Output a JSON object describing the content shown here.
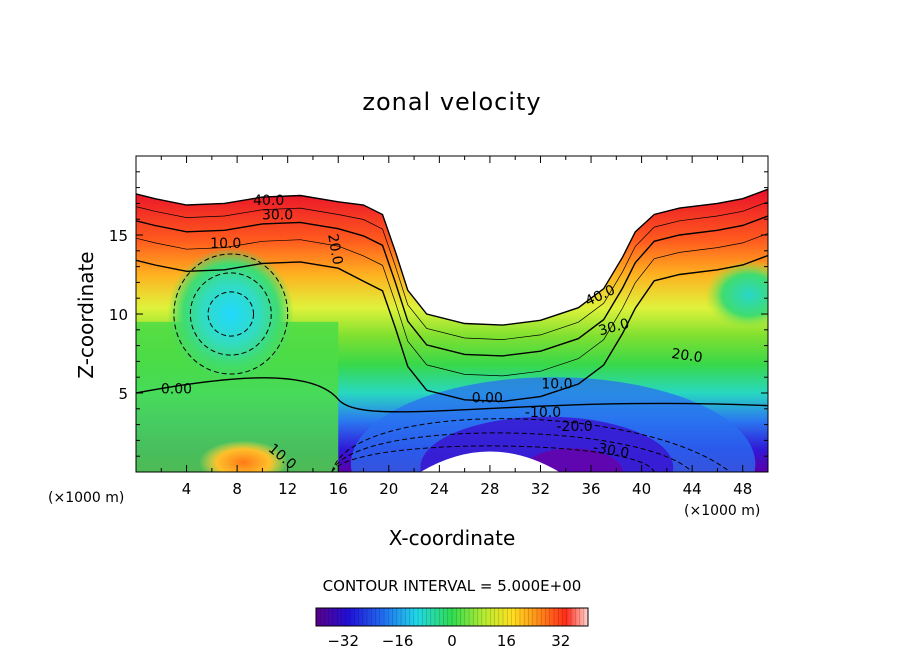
{
  "chart_data": {
    "type": "contour",
    "title": "zonal velocity",
    "xlabel": "X-coordinate",
    "ylabel": "Z-coordinate",
    "x_unit_label": "(×1000 m)",
    "xlim": [
      0,
      50
    ],
    "ylim": [
      0,
      20
    ],
    "x_ticks": [
      4,
      8,
      12,
      16,
      20,
      24,
      28,
      32,
      36,
      40,
      44,
      48
    ],
    "y_ticks": [
      5,
      10,
      15
    ],
    "contour_interval_text": "CONTOUR INTERVAL = 5.000E+00",
    "colorbar": {
      "min": -40,
      "max": 40,
      "ticks": [
        -32,
        -16,
        0,
        16,
        32
      ],
      "tick_labels": [
        "−32",
        "−16",
        "0",
        "16",
        "32"
      ]
    },
    "contour_labels": [
      {
        "text": "40.0",
        "x": 10.5,
        "z": 17.2
      },
      {
        "text": "30.0",
        "x": 11.2,
        "z": 16.3
      },
      {
        "text": "10.0",
        "x": 7.1,
        "z": 14.5
      },
      {
        "text": "20.0",
        "x": 15.8,
        "z": 14.1,
        "rotate": 80
      },
      {
        "text": "40.0",
        "x": 36.7,
        "z": 11.2,
        "rotate": -25
      },
      {
        "text": "30.0",
        "x": 37.8,
        "z": 9.2,
        "rotate": -15
      },
      {
        "text": "20.0",
        "x": 43.6,
        "z": 7.4,
        "rotate": 8
      },
      {
        "text": "10.0",
        "x": 33.3,
        "z": 5.6
      },
      {
        "text": "0.00",
        "x": 3.2,
        "z": 5.3
      },
      {
        "text": "0.00",
        "x": 27.8,
        "z": 4.7
      },
      {
        "text": "-10.0",
        "x": 32.2,
        "z": 3.8
      },
      {
        "text": "-20.0",
        "x": 34.7,
        "z": 2.9
      },
      {
        "text": "-30.0",
        "x": 37.6,
        "z": 1.4,
        "rotate": 10
      },
      {
        "text": "10.0",
        "x": 11.6,
        "z": 1.0,
        "rotate": 40
      }
    ],
    "features": {
      "surface_height": [
        [
          0,
          17.6
        ],
        [
          1.5,
          17.3
        ],
        [
          4,
          16.9
        ],
        [
          7,
          17.0
        ],
        [
          10,
          17.4
        ],
        [
          13,
          17.5
        ],
        [
          16,
          17.1
        ],
        [
          18,
          16.9
        ],
        [
          19.5,
          16.3
        ],
        [
          20.5,
          14.0
        ],
        [
          21.5,
          11.5
        ],
        [
          23,
          10.0
        ],
        [
          26,
          9.4
        ],
        [
          29,
          9.3
        ],
        [
          32,
          9.6
        ],
        [
          35,
          10.4
        ],
        [
          37,
          11.6
        ],
        [
          38.5,
          13.6
        ],
        [
          39.5,
          15.2
        ],
        [
          41,
          16.3
        ],
        [
          43,
          16.7
        ],
        [
          46,
          17.0
        ],
        [
          48,
          17.3
        ],
        [
          50,
          17.9
        ]
      ],
      "jet_max_u": 40,
      "min_u": -40,
      "left_vortex_center": [
        7.5,
        10.0
      ],
      "right_vortex_center": [
        48.5,
        11.2
      ],
      "undercut_bottom_region": [
        [
          22.5,
          0
        ],
        [
          33.5,
          0
        ]
      ]
    }
  }
}
